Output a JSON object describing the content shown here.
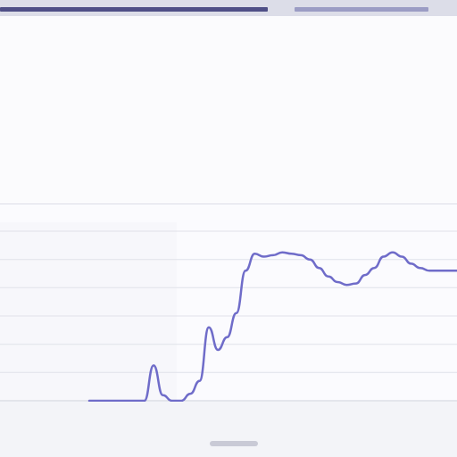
{
  "document": {
    "header_line": "",
    "byline": "",
    "heading": "",
    "paragraphs": [
      "",
      "",
      "",
      ""
    ]
  },
  "chart_data": {
    "type": "line",
    "title": "",
    "xlabel": "",
    "ylabel": "",
    "grid": true,
    "legend": "none",
    "colors": {
      "line": "#6f6cc9",
      "grid": "#e0e2ea",
      "ticks": "#8d8f9b"
    },
    "x": [
      0,
      1,
      2,
      3,
      4,
      5,
      6,
      7,
      8,
      9,
      10,
      11,
      12,
      13,
      14,
      15,
      16,
      17,
      18,
      19,
      20,
      21,
      22,
      23,
      24,
      25,
      26,
      27,
      28,
      29,
      30,
      31,
      32,
      33,
      34,
      35,
      36,
      37,
      38,
      39,
      40
    ],
    "series": [
      {
        "values": [
          0,
          0,
          0,
          0,
          0,
          0,
          0,
          0.25,
          0.04,
          0,
          0,
          0.05,
          0.14,
          0.52,
          0.36,
          0.45,
          0.62,
          0.92,
          1.04,
          1.02,
          1.03,
          1.05,
          1.04,
          1.03,
          1.0,
          0.94,
          0.88,
          0.84,
          0.82,
          0.83,
          0.89,
          0.94,
          1.02,
          1.05,
          1.02,
          0.97,
          0.94,
          0.92,
          0.92,
          0.92,
          0.92
        ]
      }
    ],
    "ylim": [
      0,
      1.2
    ]
  },
  "ui": {
    "bottom_handle": ""
  }
}
